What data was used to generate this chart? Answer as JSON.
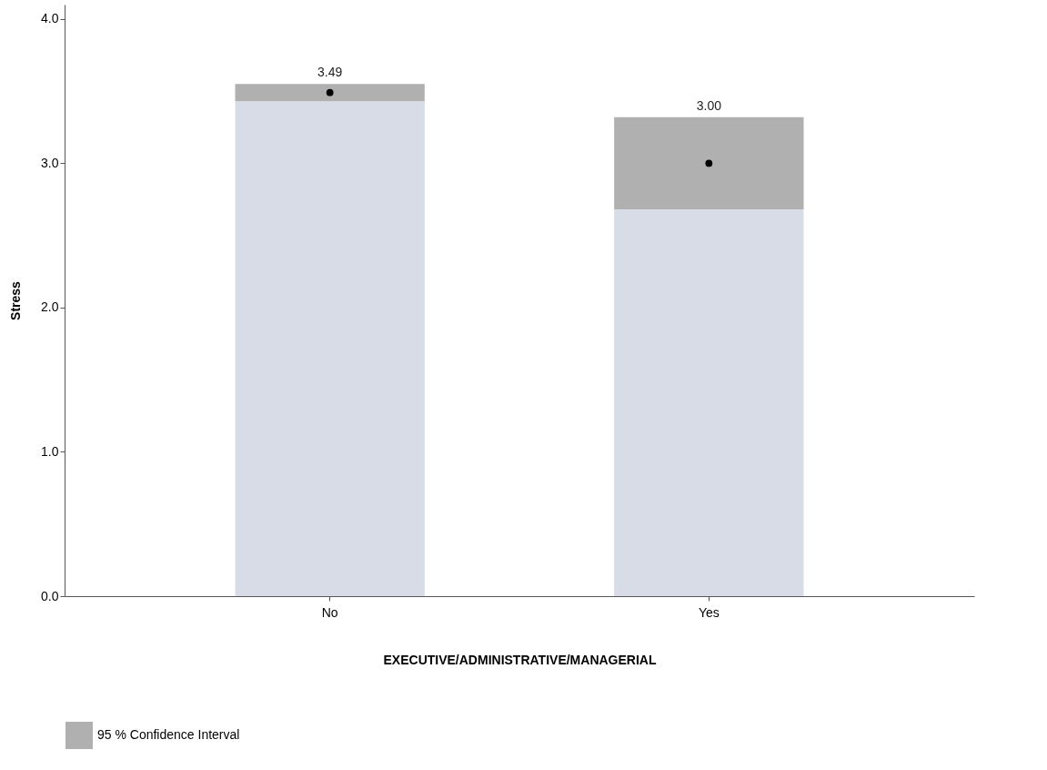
{
  "chart_data": {
    "type": "bar",
    "xlabel": "EXECUTIVE/ADMINISTRATIVE/MANAGERIAL",
    "ylabel": "Stress",
    "categories": [
      "No",
      "Yes"
    ],
    "stacked": true,
    "series": [
      {
        "color": "#d8dce6",
        "values": [
          3.43,
          2.68
        ]
      },
      {
        "name": "95 % Confidence Interval",
        "color": "#b0b0b0",
        "values": [
          0.12,
          0.64
        ]
      },
      {
        "type": "scatter",
        "color": "#000000",
        "x": [
          "No",
          "Yes"
        ],
        "values": [
          3.49,
          3.0
        ],
        "marker": "circle"
      }
    ],
    "annotations": [
      {
        "text": "3.49",
        "x": "No",
        "y": 3.55
      },
      {
        "text": "3.00",
        "x": "Yes",
        "y": 3.32
      }
    ],
    "legend": "bottom left",
    "ylim": [
      0,
      4.1
    ],
    "yticks": [
      {
        "value": 0,
        "label": "0.0"
      },
      {
        "value": 1,
        "label": "1.0"
      },
      {
        "value": 2,
        "label": "2.0"
      },
      {
        "value": 3,
        "label": "3.0"
      },
      {
        "value": 4,
        "label": "4.0"
      }
    ],
    "grid": false
  }
}
